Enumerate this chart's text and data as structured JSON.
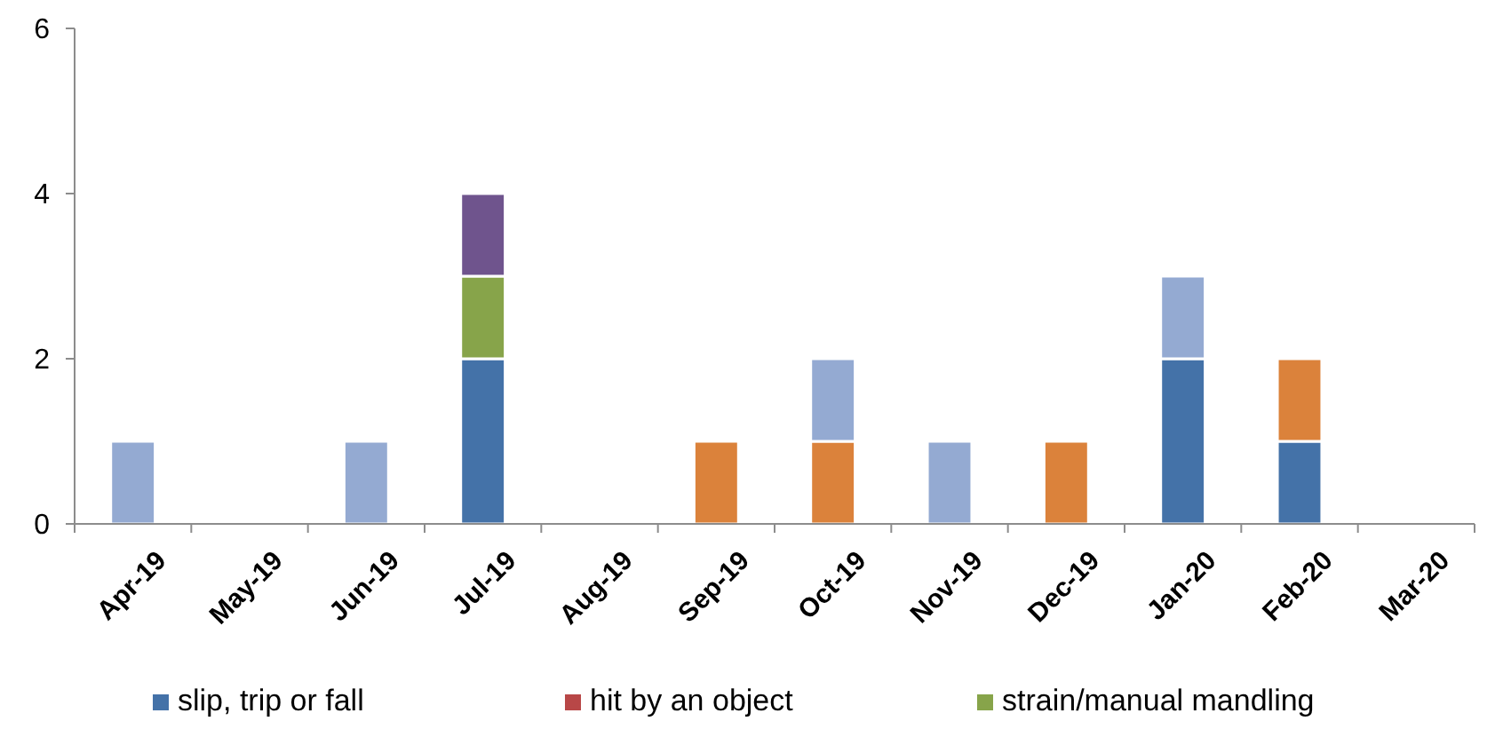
{
  "chart_data": {
    "type": "bar",
    "stacked": true,
    "categories": [
      "Apr-19",
      "May-19",
      "Jun-19",
      "Jul-19",
      "Aug-19",
      "Sep-19",
      "Oct-19",
      "Nov-19",
      "Dec-19",
      "Jan-20",
      "Feb-20",
      "Mar-20"
    ],
    "series": [
      {
        "name": "slip, trip or fall",
        "color": "#4472a8",
        "values": [
          0,
          0,
          0,
          2,
          0,
          0,
          0,
          0,
          0,
          2,
          1,
          0
        ]
      },
      {
        "name": "hit by an object",
        "color": "#b84747",
        "values": [
          0,
          0,
          0,
          0,
          0,
          0,
          0,
          0,
          0,
          0,
          0,
          0
        ]
      },
      {
        "name": "strain/manual mandling",
        "color": "#87a44a",
        "values": [
          0,
          0,
          0,
          1,
          0,
          0,
          0,
          0,
          0,
          0,
          0,
          0
        ]
      },
      {
        "color": "#6f548d",
        "values": [
          0,
          0,
          0,
          1,
          0,
          0,
          0,
          0,
          0,
          0,
          0,
          0
        ]
      },
      {
        "color": "#db823b",
        "values": [
          0,
          0,
          0,
          0,
          0,
          1,
          1,
          0,
          1,
          0,
          1,
          0
        ]
      },
      {
        "color": "#94aad2",
        "values": [
          1,
          0,
          1,
          0,
          0,
          0,
          1,
          1,
          0,
          1,
          0,
          0
        ]
      }
    ],
    "ylim": [
      0,
      6
    ],
    "yticks": [
      0,
      2,
      4,
      6
    ],
    "grid": false,
    "legend": "bottom"
  }
}
